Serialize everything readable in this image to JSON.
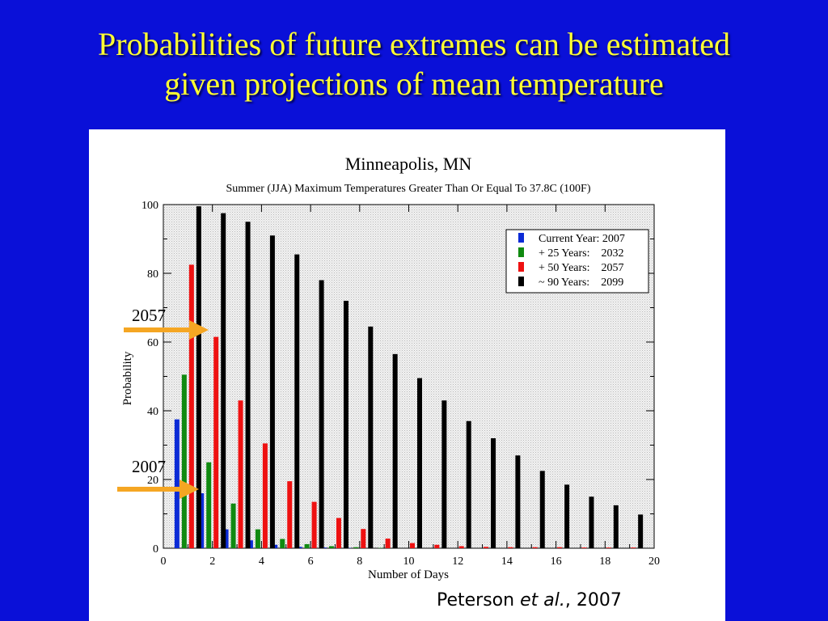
{
  "slide": {
    "title_line1": "Probabilities of future extremes can be estimated",
    "title_line2": "given projections of mean temperature",
    "citation_author": "Peterson",
    "citation_etal": "et al.",
    "citation_year": ", 2007",
    "annotations": [
      {
        "label": "2057",
        "arrow_color": "#f5a623"
      },
      {
        "label": "2007",
        "arrow_color": "#f5a623"
      }
    ]
  },
  "chart_data": {
    "type": "bar",
    "title": "Minneapolis, MN",
    "subtitle": "Summer (JJA) Maximum Temperatures Greater Than Or Equal To 37.8C (100F)",
    "xlabel": "Number of Days",
    "ylabel": "Probability",
    "xlim": [
      0,
      20
    ],
    "ylim": [
      0,
      100
    ],
    "x_ticks": [
      0,
      2,
      4,
      6,
      8,
      10,
      12,
      14,
      16,
      18,
      20
    ],
    "y_ticks": [
      0,
      20,
      40,
      60,
      80,
      100
    ],
    "grid": false,
    "legend_position": "top-right",
    "x": [
      1,
      2,
      3,
      4,
      5,
      6,
      7,
      8,
      9,
      10,
      11,
      12,
      13,
      14,
      15,
      16,
      17,
      18,
      19
    ],
    "series": [
      {
        "name": "Current Year: 2007",
        "color": "#0b2bd6",
        "values": [
          37.5,
          16,
          5.5,
          2.3,
          1,
          0.4,
          0.2,
          0.1,
          0,
          0,
          0,
          0,
          0,
          0,
          0,
          0,
          0,
          0,
          0
        ]
      },
      {
        "name": "+ 25 Years:    2032",
        "color": "#108a10",
        "values": [
          50.5,
          25,
          13,
          5.5,
          2.7,
          1.2,
          0.6,
          0.3,
          0.1,
          0,
          0,
          0,
          0,
          0,
          0,
          0,
          0,
          0,
          0
        ]
      },
      {
        "name": "+ 50 Years:    2057",
        "color": "#ee1111",
        "values": [
          82.5,
          61.5,
          43,
          30.5,
          19.5,
          13.5,
          8.8,
          5.6,
          2.8,
          1.5,
          1,
          0.6,
          0.4,
          0.3,
          0.3,
          0.3,
          0.2,
          0.2,
          0.2
        ]
      },
      {
        "name": "~ 90 Years:    2099",
        "color": "#000000",
        "values": [
          99.5,
          97.5,
          95,
          91,
          85.5,
          78,
          72,
          64.5,
          56.5,
          49.5,
          43,
          37,
          32,
          27,
          22.5,
          18.5,
          15,
          12.5,
          9.8
        ]
      }
    ]
  }
}
